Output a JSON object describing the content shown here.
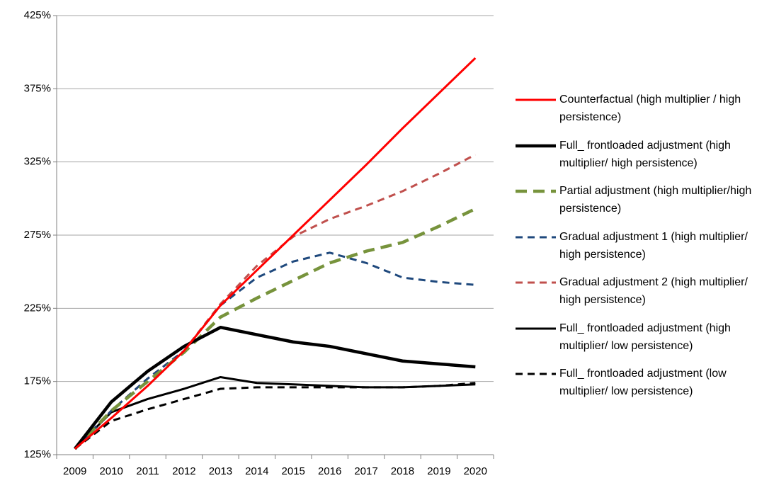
{
  "chart_data": {
    "type": "line",
    "categories": [
      "2009",
      "2010",
      "2011",
      "2012",
      "2013",
      "2014",
      "2015",
      "2016",
      "2017",
      "2018",
      "2019",
      "2020"
    ],
    "ylim": [
      125,
      425
    ],
    "yticks": [
      {
        "value": 125,
        "label": "125%"
      },
      {
        "value": 175,
        "label": "175%"
      },
      {
        "value": 225,
        "label": "225%"
      },
      {
        "value": 275,
        "label": "275%"
      },
      {
        "value": 325,
        "label": "325%"
      },
      {
        "value": 375,
        "label": "375%"
      },
      {
        "value": 425,
        "label": "425%"
      }
    ],
    "grid": true,
    "legend": "right",
    "series": [
      {
        "name": "Counterfactual (high multiplier / high persistence)",
        "color": "#ff0000",
        "line_style": "solid-medium",
        "values": [
          129,
          150,
          172,
          196,
          227,
          251,
          275,
          299,
          323,
          348,
          372,
          396
        ]
      },
      {
        "name": "Full_ frontloaded adjustment (high multiplier/ high persistence)",
        "color": "#000000",
        "line_style": "solid-thick",
        "values": [
          129,
          161,
          182,
          199,
          212,
          207,
          202,
          199,
          194,
          189,
          187,
          185
        ]
      },
      {
        "name": "Partial adjustment (high multiplier/high persistence)",
        "color": "#77933c",
        "line_style": "dashed-thick",
        "values": [
          129,
          155,
          175,
          195,
          219,
          232,
          244,
          256,
          264,
          270,
          281,
          293
        ]
      },
      {
        "name": "Gradual adjustment 1 (high multiplier/ high persistence)",
        "color": "#1f497d",
        "line_style": "dashed-medium",
        "values": [
          129,
          155,
          177,
          196,
          227,
          246,
          257,
          263,
          256,
          246,
          243,
          241
        ]
      },
      {
        "name": "Gradual adjustment 2 (high multiplier/ high persistence)",
        "color": "#c0504d",
        "line_style": "dashed-medium",
        "values": [
          129,
          155,
          177,
          196,
          228,
          254,
          274,
          286,
          295,
          305,
          317,
          330
        ]
      },
      {
        "name": "Full_ frontloaded adjustment (high multiplier/ low persistence)",
        "color": "#000000",
        "line_style": "solid-medium",
        "values": [
          129,
          154,
          163,
          170,
          178,
          174,
          173,
          172,
          171,
          171,
          172,
          173
        ]
      },
      {
        "name": "Full_ frontloaded adjustment (low multiplier/ low persistence)",
        "color": "#000000",
        "line_style": "dashed-medium",
        "values": [
          129,
          148,
          156,
          163,
          170,
          171,
          171,
          171,
          171,
          171,
          172,
          174
        ]
      }
    ]
  }
}
